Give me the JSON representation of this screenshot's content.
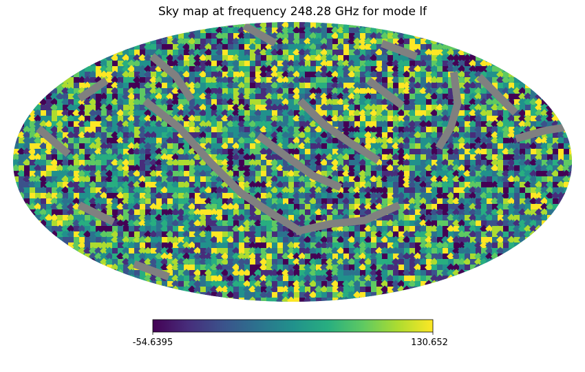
{
  "chart_data": {
    "type": "heatmap",
    "title": "Sky map at frequency 248.28 GHz for mode lf",
    "projection": "mollweide",
    "colormap": "viridis",
    "colorbar": {
      "orientation": "horizontal",
      "min": -54.6395,
      "max": 130.652,
      "min_label": "-54.6395",
      "max_label": "130.652"
    },
    "masked_color": "#808080",
    "grid": false
  }
}
